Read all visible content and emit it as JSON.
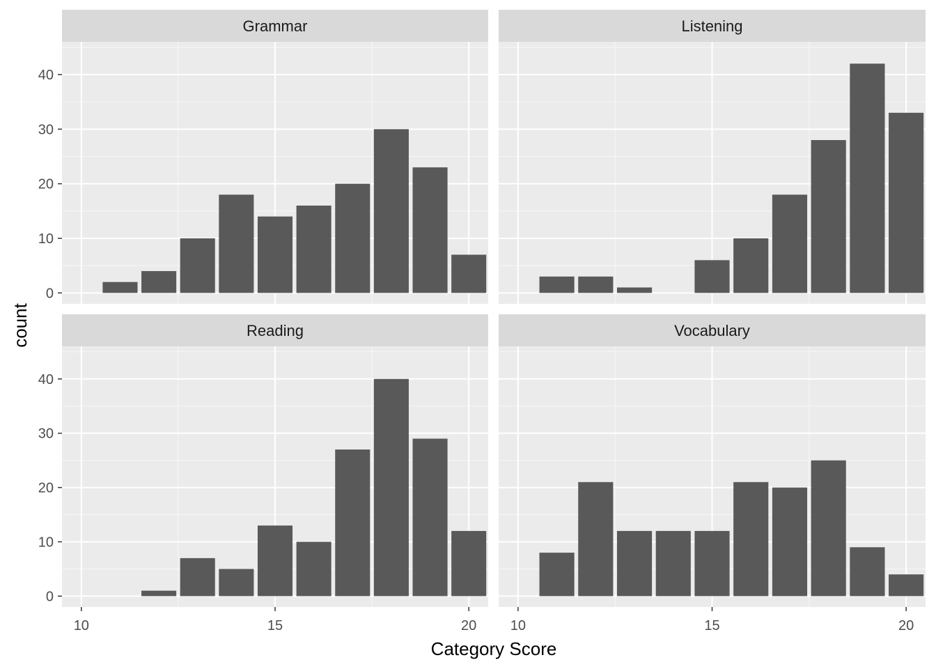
{
  "chart_data": {
    "type": "bar",
    "facet_layout": "2x2 wrap",
    "xlabel": "Category Score",
    "ylabel": "count",
    "xlim": [
      9.5,
      20.5
    ],
    "ylim": [
      -2,
      46
    ],
    "x_ticks": [
      10,
      15,
      20
    ],
    "y_ticks": [
      0,
      10,
      20,
      30,
      40
    ],
    "grid": true,
    "bar_color": "#595959",
    "panel_background": "#ebebeb",
    "strip_background": "#d9d9d9",
    "x": [
      11,
      12,
      13,
      14,
      15,
      16,
      17,
      18,
      19,
      20
    ],
    "facets": [
      {
        "name": "Grammar",
        "values": [
          2,
          4,
          10,
          18,
          14,
          16,
          20,
          30,
          23,
          7
        ]
      },
      {
        "name": "Listening",
        "values": [
          3,
          3,
          1,
          0,
          6,
          10,
          18,
          28,
          42,
          33
        ]
      },
      {
        "name": "Reading",
        "values": [
          0,
          1,
          7,
          5,
          13,
          10,
          27,
          40,
          29,
          12
        ]
      },
      {
        "name": "Vocabulary",
        "values": [
          8,
          21,
          12,
          12,
          12,
          21,
          20,
          25,
          9,
          4
        ]
      }
    ]
  }
}
